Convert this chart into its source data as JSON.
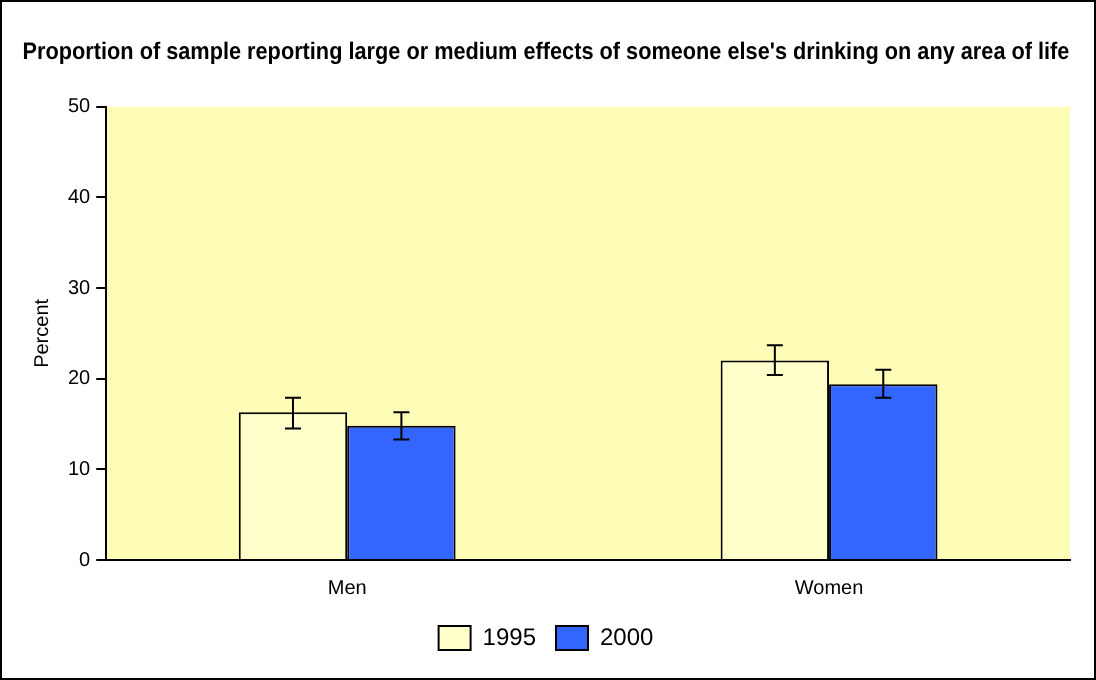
{
  "chart_data": {
    "type": "bar",
    "title": "Proportion of sample reporting large or medium effects of someone else's drinking on any area of life",
    "ylabel": "Percent",
    "categories": [
      "Men",
      "Women"
    ],
    "series": [
      {
        "name": "1995",
        "color": "#ffffcc",
        "values": [
          16.3,
          22.0
        ],
        "errors": [
          [
            14.5,
            17.9
          ],
          [
            20.4,
            23.7
          ]
        ]
      },
      {
        "name": "2000",
        "color": "#3366ff",
        "values": [
          14.8,
          19.4
        ],
        "errors": [
          [
            13.3,
            16.3
          ],
          [
            17.9,
            21.0
          ]
        ]
      }
    ],
    "ylim": [
      0,
      50
    ],
    "yticks": [
      0,
      10,
      20,
      30,
      40,
      50
    ],
    "grid": false,
    "legend": "bottom"
  }
}
